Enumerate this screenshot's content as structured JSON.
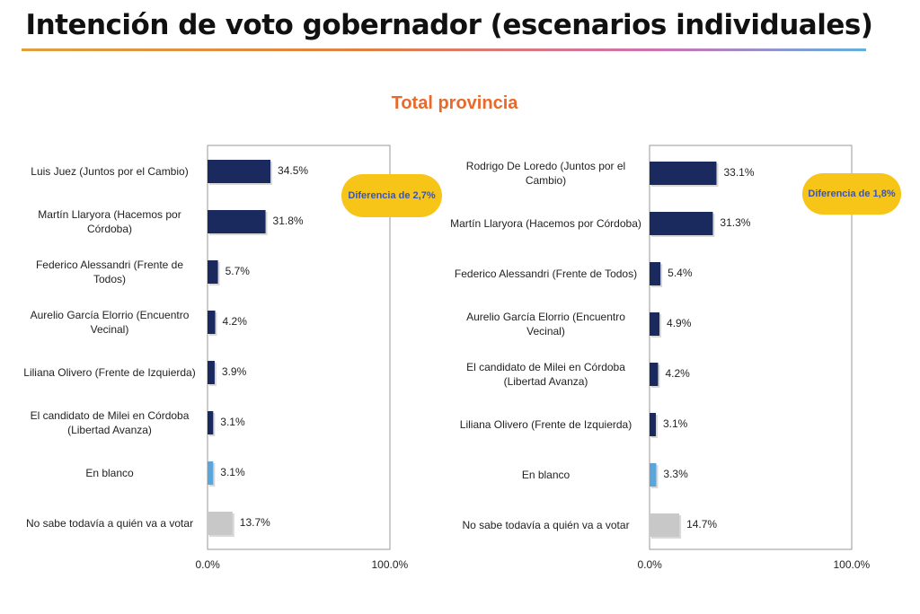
{
  "title": "Intención de voto gobernador (escenarios individuales)",
  "subtitle": "Total provincia",
  "colors": {
    "candidate": "#1a2a5e",
    "blank": "#5aa5dc",
    "undecided": "#c8c8c8",
    "bubble": "#f6c518",
    "subtitle": "#e8692c"
  },
  "chart_data": [
    {
      "type": "bar",
      "orientation": "horizontal",
      "categories": [
        "Luis Juez (Juntos por el Cambio)",
        "Martín Llaryora (Hacemos por Córdoba)",
        "Federico Alessandri (Frente de Todos)",
        "Aurelio García Elorrio (Encuentro Vecinal)",
        "Liliana Olivero (Frente de Izquierda)",
        "El candidato de Milei en Córdoba (Libertad Avanza)",
        "En blanco",
        "No sabe todavía a quién va a votar"
      ],
      "values": [
        34.5,
        31.8,
        5.7,
        4.2,
        3.9,
        3.1,
        3.1,
        13.7
      ],
      "value_labels": [
        "34.5%",
        "31.8%",
        "5.7%",
        "4.2%",
        "3.9%",
        "3.1%",
        "3.1%",
        "13.7%"
      ],
      "bar_kinds": [
        "candidate",
        "candidate",
        "candidate",
        "candidate",
        "candidate",
        "candidate",
        "blank",
        "undecided"
      ],
      "xlim": [
        0,
        100
      ],
      "tick_labels": [
        "0.0%",
        "100.0%"
      ],
      "annotation": "Diferencia de 2,7%"
    },
    {
      "type": "bar",
      "orientation": "horizontal",
      "categories": [
        "Rodrigo De Loredo (Juntos por el Cambio)",
        "Martín Llaryora (Hacemos por Córdoba)",
        "Federico Alessandri (Frente de Todos)",
        "Aurelio García Elorrio (Encuentro Vecinal)",
        "El candidato de Milei en Córdoba (Libertad Avanza)",
        "Liliana Olivero (Frente de Izquierda)",
        "En blanco",
        "No sabe todavía a quién va a votar"
      ],
      "values": [
        33.1,
        31.3,
        5.4,
        4.9,
        4.2,
        3.1,
        3.3,
        14.7
      ],
      "value_labels": [
        "33.1%",
        "31.3%",
        "5.4%",
        "4.9%",
        "4.2%",
        "3.1%",
        "3.3%",
        "14.7%"
      ],
      "bar_kinds": [
        "candidate",
        "candidate",
        "candidate",
        "candidate",
        "candidate",
        "candidate",
        "blank",
        "undecided"
      ],
      "xlim": [
        0,
        100
      ],
      "tick_labels": [
        "0.0%",
        "100.0%"
      ],
      "annotation": "Diferencia de 1,8%"
    }
  ]
}
